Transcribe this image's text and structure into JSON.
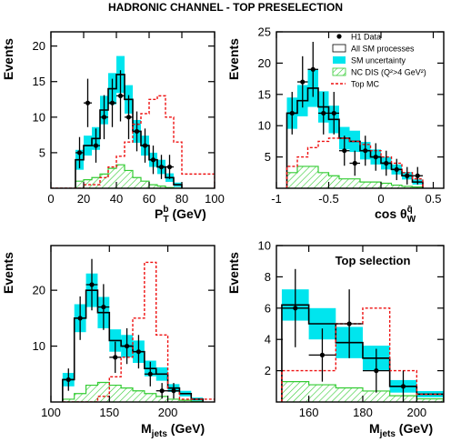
{
  "figure_title": "HADRONIC CHANNEL - TOP PRESELECTION",
  "legend": {
    "h1_data": "H1 Data",
    "all_sm": "All SM processes",
    "sm_unc": "SM uncertainty",
    "nc_dis": "NC DIS (Q²>4 GeV²)",
    "top_mc": "Top MC"
  },
  "colors": {
    "sm_band": "#00e5ee",
    "nc_dis": "#33cc33",
    "top_mc": "#ee1111",
    "data": "#000000",
    "axis": "#000000"
  },
  "chart_data": [
    {
      "type": "histogram",
      "panel": "top-left",
      "xlabel": "P_T^b (GeV)",
      "ylabel": "Events",
      "xlim": [
        0,
        100
      ],
      "ylim": [
        0,
        22
      ],
      "xticks": [
        0,
        20,
        40,
        60,
        80,
        100
      ],
      "yticks": [
        5,
        10,
        15,
        20
      ],
      "xtick_labels": [
        "0",
        "20",
        "40",
        "60",
        "80",
        "100"
      ],
      "ytick_labels": [
        "5",
        "10",
        "15",
        "20"
      ],
      "bin_edges": [
        15,
        20,
        25,
        30,
        35,
        40,
        45,
        50,
        55,
        60,
        65,
        70,
        75,
        80
      ],
      "sm_total": [
        4.0,
        6.0,
        7.0,
        11.0,
        14.0,
        16.0,
        12.5,
        8.0,
        6.0,
        4.0,
        3.0,
        1.5,
        0.5
      ],
      "sm_unc_low": [
        2.6,
        4.6,
        5.4,
        9.0,
        11.8,
        13.4,
        10.5,
        6.4,
        4.6,
        3.0,
        2.0,
        0.9,
        0.2
      ],
      "sm_unc_high": [
        5.4,
        7.4,
        8.6,
        13.0,
        16.2,
        18.6,
        14.5,
        9.6,
        7.4,
        5.0,
        4.0,
        2.1,
        0.8
      ],
      "nc_dis": [
        1.0,
        1.2,
        1.5,
        2.0,
        2.8,
        3.3,
        2.5,
        1.5,
        1.0,
        0.5,
        0.3,
        0.1,
        0.0
      ],
      "top_mc_edges": [
        0,
        20,
        30,
        35,
        40,
        45,
        50,
        55,
        60,
        65,
        70,
        75,
        80,
        100
      ],
      "top_mc": [
        0.0,
        0.5,
        1.5,
        3.0,
        4.5,
        6.5,
        9.0,
        10.5,
        12.5,
        13.0,
        10.0,
        6.5,
        2.0
      ],
      "data": [
        {
          "x": 17.5,
          "y": 5,
          "err": 2.2
        },
        {
          "x": 22.5,
          "y": 12,
          "err": 3.4
        },
        {
          "x": 27.5,
          "y": 6,
          "err": 2.4
        },
        {
          "x": 32.5,
          "y": 10,
          "err": 3.1
        },
        {
          "x": 37.5,
          "y": 12,
          "err": 3.4
        },
        {
          "x": 42.5,
          "y": 13,
          "err": 3.6
        },
        {
          "x": 47.5,
          "y": 10,
          "err": 3.1
        },
        {
          "x": 52.5,
          "y": 8,
          "err": 2.8
        },
        {
          "x": 57.5,
          "y": 6,
          "err": 2.4
        },
        {
          "x": 62.5,
          "y": 4,
          "err": 2.0
        },
        {
          "x": 67.5,
          "y": 3,
          "err": 1.7
        },
        {
          "x": 72.5,
          "y": 3,
          "err": 1.7
        }
      ]
    },
    {
      "type": "histogram",
      "panel": "top-right",
      "xlabel": "cos θ_W^q̄",
      "ylabel": "Events",
      "xlim": [
        -1,
        0.6
      ],
      "ylim": [
        0,
        25
      ],
      "xticks": [
        -1,
        -0.5,
        0,
        0.5
      ],
      "yticks": [
        5,
        10,
        15,
        20,
        25
      ],
      "xtick_labels": [
        "-1",
        "-0.5",
        "0",
        "0.5"
      ],
      "ytick_labels": [
        "5",
        "10",
        "15",
        "20",
        "25"
      ],
      "bin_edges": [
        -0.9,
        -0.8,
        -0.7,
        -0.6,
        -0.5,
        -0.4,
        -0.3,
        -0.2,
        -0.1,
        0.0,
        0.1,
        0.2,
        0.3,
        0.4
      ],
      "sm_total": [
        12.0,
        14.0,
        16.0,
        13.0,
        11.0,
        8.0,
        7.5,
        6.0,
        5.0,
        4.0,
        3.0,
        2.0,
        1.0
      ],
      "sm_unc_low": [
        9.5,
        11.5,
        13.0,
        10.5,
        8.8,
        6.2,
        5.8,
        4.6,
        3.8,
        3.0,
        2.2,
        1.4,
        0.6
      ],
      "sm_unc_high": [
        14.5,
        16.5,
        19.0,
        15.5,
        13.2,
        9.8,
        9.2,
        7.4,
        6.2,
        5.0,
        3.8,
        2.6,
        1.4
      ],
      "nc_dis": [
        2.5,
        3.5,
        3.5,
        2.5,
        2.0,
        1.5,
        1.5,
        1.0,
        1.0,
        0.8,
        0.5,
        0.3,
        0.2
      ],
      "top_mc_edges": [
        -0.9,
        -0.8,
        -0.7,
        -0.6,
        -0.5,
        -0.4,
        -0.3,
        -0.2,
        -0.1,
        0.0,
        0.1,
        0.2,
        0.3,
        0.4
      ],
      "top_mc": [
        3.5,
        5.0,
        6.5,
        7.5,
        8.0,
        8.0,
        7.5,
        7.0,
        6.0,
        5.0,
        4.0,
        2.5,
        1.5
      ],
      "data": [
        {
          "x": -0.85,
          "y": 12,
          "err": 3.4
        },
        {
          "x": -0.75,
          "y": 17,
          "err": 4.1
        },
        {
          "x": -0.65,
          "y": 19,
          "err": 4.4
        },
        {
          "x": -0.55,
          "y": 12,
          "err": 3.4
        },
        {
          "x": -0.45,
          "y": 12,
          "err": 3.4
        },
        {
          "x": -0.35,
          "y": 6,
          "err": 2.4
        },
        {
          "x": -0.25,
          "y": 4,
          "err": 2.0
        },
        {
          "x": -0.15,
          "y": 6,
          "err": 2.4
        },
        {
          "x": -0.05,
          "y": 5,
          "err": 2.2
        },
        {
          "x": 0.05,
          "y": 4,
          "err": 2.0
        },
        {
          "x": 0.15,
          "y": 3,
          "err": 1.7
        },
        {
          "x": 0.25,
          "y": 2,
          "err": 1.4
        },
        {
          "x": 0.35,
          "y": 2,
          "err": 1.4
        }
      ]
    },
    {
      "type": "histogram",
      "panel": "bottom-left",
      "xlabel": "M_jets (GeV)",
      "ylabel": "Events",
      "xlim": [
        100,
        240
      ],
      "ylim": [
        0,
        28
      ],
      "xticks": [
        100,
        150,
        200
      ],
      "yticks": [
        10,
        20
      ],
      "xtick_labels": [
        "100",
        "150",
        "200"
      ],
      "ytick_labels": [
        "10",
        "20"
      ],
      "bin_edges": [
        110,
        120,
        130,
        140,
        150,
        160,
        170,
        180,
        190,
        200,
        210,
        220,
        230
      ],
      "sm_total": [
        4.0,
        15.0,
        20.0,
        16.0,
        11.0,
        10.0,
        9.0,
        6.0,
        5.0,
        2.5,
        1.5,
        0.5
      ],
      "sm_unc_low": [
        2.8,
        12.5,
        17.0,
        13.2,
        9.0,
        8.0,
        7.0,
        4.6,
        3.8,
        1.8,
        1.0,
        0.2
      ],
      "sm_unc_high": [
        5.2,
        17.5,
        23.0,
        18.8,
        13.0,
        12.0,
        11.0,
        7.4,
        6.2,
        3.2,
        2.0,
        0.8
      ],
      "nc_dis": [
        0.5,
        1.5,
        3.0,
        3.5,
        3.0,
        2.5,
        2.0,
        1.5,
        1.0,
        0.5,
        0.3,
        0.1
      ],
      "top_mc_edges": [
        110,
        140,
        150,
        160,
        170,
        180,
        190,
        200,
        210,
        240
      ],
      "top_mc": [
        0.0,
        1.0,
        4.5,
        8.0,
        15.0,
        25.0,
        12.0,
        2.0,
        0.5
      ],
      "data": [
        {
          "x": 115,
          "y": 4,
          "err": 2.0
        },
        {
          "x": 125,
          "y": 15,
          "err": 3.9
        },
        {
          "x": 135,
          "y": 21,
          "err": 4.6
        },
        {
          "x": 145,
          "y": 17,
          "err": 4.1
        },
        {
          "x": 155,
          "y": 8,
          "err": 2.8
        },
        {
          "x": 165,
          "y": 10,
          "err": 3.2
        },
        {
          "x": 175,
          "y": 9,
          "err": 3.0
        },
        {
          "x": 185,
          "y": 5,
          "err": 2.2
        },
        {
          "x": 195,
          "y": 2,
          "err": 1.4
        },
        {
          "x": 205,
          "y": 2,
          "err": 1.4
        }
      ]
    },
    {
      "type": "histogram",
      "panel": "bottom-right",
      "inset_title": "Top selection",
      "xlabel": "M_jets (GeV)",
      "ylabel": "Events",
      "xlim": [
        148,
        210
      ],
      "ylim": [
        0,
        10
      ],
      "xticks": [
        160,
        180,
        200
      ],
      "yticks": [
        2,
        4,
        6,
        8,
        10
      ],
      "xtick_labels": [
        "160",
        "180",
        "200"
      ],
      "ytick_labels": [
        "2",
        "4",
        "6",
        "8",
        "10"
      ],
      "bin_edges": [
        150,
        160,
        170,
        180,
        190,
        200,
        210
      ],
      "sm_total": [
        6.2,
        5.0,
        3.8,
        2.8,
        1.0,
        0.5
      ],
      "sm_unc_low": [
        5.2,
        4.0,
        2.8,
        2.0,
        0.6,
        0.3
      ],
      "sm_unc_high": [
        7.2,
        6.0,
        4.8,
        3.6,
        1.4,
        0.7
      ],
      "nc_dis": [
        1.3,
        1.1,
        0.9,
        0.7,
        0.4,
        0.2
      ],
      "top_mc_edges": [
        150,
        160,
        170,
        180,
        190,
        200,
        210
      ],
      "top_mc": [
        2.0,
        2.0,
        5.0,
        6.0,
        2.0,
        0.5
      ],
      "data": [
        {
          "x": 155,
          "y": 6,
          "err": 2.5
        },
        {
          "x": 165,
          "y": 3,
          "err": 1.7
        },
        {
          "x": 175,
          "y": 5,
          "err": 2.2
        },
        {
          "x": 185,
          "y": 2,
          "err": 1.4
        },
        {
          "x": 195,
          "y": 1,
          "err": 1.0
        }
      ]
    }
  ]
}
